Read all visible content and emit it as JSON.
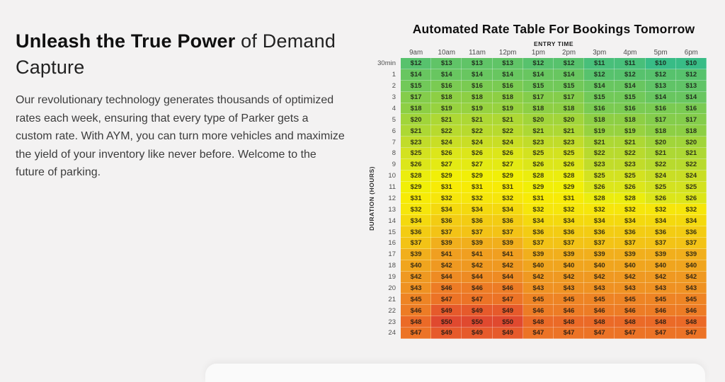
{
  "hero": {
    "title_bold": "Unleash the True Power",
    "title_light_line1": " of Demand",
    "title_line2": "Capture",
    "paragraph": "Our revolutionary technology generates thousands of optimized rates each week, ensuring that every type of Parker gets a custom rate. With AYM, you can turn more vehicles and maximize the yield of your inventory like never before. Welcome to the future of parking."
  },
  "chart_data": {
    "type": "heatmap",
    "title": "Automated Rate Table For Bookings Tomorrow",
    "xlabel": "ENTRY TIME",
    "ylabel": "DURATION (HOURS)",
    "value_prefix": "$",
    "legend_position": "none",
    "columns": [
      "9am",
      "10am",
      "11am",
      "12pm",
      "1pm",
      "2pm",
      "3pm",
      "4pm",
      "5pm",
      "6pm"
    ],
    "rows": [
      "30min",
      "1",
      "2",
      "3",
      "4",
      "5",
      "6",
      "7",
      "8",
      "9",
      "10",
      "11",
      "12",
      "13",
      "14",
      "15",
      "16",
      "17",
      "18",
      "19",
      "20",
      "21",
      "22",
      "23",
      "24"
    ],
    "values": [
      [
        12,
        13,
        13,
        13,
        12,
        12,
        11,
        11,
        10,
        10
      ],
      [
        14,
        14,
        14,
        14,
        14,
        14,
        12,
        12,
        12,
        12
      ],
      [
        15,
        16,
        16,
        16,
        15,
        15,
        14,
        14,
        13,
        13
      ],
      [
        17,
        18,
        18,
        18,
        17,
        17,
        15,
        15,
        14,
        14
      ],
      [
        18,
        19,
        19,
        19,
        18,
        18,
        16,
        16,
        16,
        16
      ],
      [
        20,
        21,
        21,
        21,
        20,
        20,
        18,
        18,
        17,
        17
      ],
      [
        21,
        22,
        22,
        22,
        21,
        21,
        19,
        19,
        18,
        18
      ],
      [
        23,
        24,
        24,
        24,
        23,
        23,
        21,
        21,
        20,
        20
      ],
      [
        25,
        26,
        26,
        26,
        25,
        25,
        22,
        22,
        21,
        21
      ],
      [
        26,
        27,
        27,
        27,
        26,
        26,
        23,
        23,
        22,
        22
      ],
      [
        28,
        29,
        29,
        29,
        28,
        28,
        25,
        25,
        24,
        24
      ],
      [
        29,
        31,
        31,
        31,
        29,
        29,
        26,
        26,
        25,
        25
      ],
      [
        31,
        32,
        32,
        32,
        31,
        31,
        28,
        28,
        26,
        26
      ],
      [
        32,
        34,
        34,
        34,
        32,
        32,
        32,
        32,
        32,
        32
      ],
      [
        34,
        36,
        36,
        36,
        34,
        34,
        34,
        34,
        34,
        34
      ],
      [
        36,
        37,
        37,
        37,
        36,
        36,
        36,
        36,
        36,
        36
      ],
      [
        37,
        39,
        39,
        39,
        37,
        37,
        37,
        37,
        37,
        37
      ],
      [
        39,
        41,
        41,
        41,
        39,
        39,
        39,
        39,
        39,
        39
      ],
      [
        40,
        42,
        42,
        42,
        40,
        40,
        40,
        40,
        40,
        40
      ],
      [
        42,
        44,
        44,
        44,
        42,
        42,
        42,
        42,
        42,
        42
      ],
      [
        43,
        46,
        46,
        46,
        43,
        43,
        43,
        43,
        43,
        43
      ],
      [
        45,
        47,
        47,
        47,
        45,
        45,
        45,
        45,
        45,
        45
      ],
      [
        46,
        49,
        49,
        49,
        46,
        46,
        46,
        46,
        46,
        46
      ],
      [
        48,
        50,
        50,
        50,
        48,
        48,
        48,
        48,
        48,
        48
      ],
      [
        47,
        49,
        49,
        49,
        47,
        47,
        47,
        47,
        47,
        47
      ]
    ],
    "value_range": [
      10,
      50
    ],
    "color_scale": [
      {
        "value": 10,
        "color": "#38bc86"
      },
      {
        "value": 12,
        "color": "#57c26d"
      },
      {
        "value": 14,
        "color": "#68c660"
      },
      {
        "value": 16,
        "color": "#7acb52"
      },
      {
        "value": 18,
        "color": "#8dcf44"
      },
      {
        "value": 20,
        "color": "#a1d53a"
      },
      {
        "value": 22,
        "color": "#b8da2e"
      },
      {
        "value": 24,
        "color": "#c9de25"
      },
      {
        "value": 26,
        "color": "#dce61a"
      },
      {
        "value": 28,
        "color": "#ebed0e"
      },
      {
        "value": 30,
        "color": "#f7f000"
      },
      {
        "value": 32,
        "color": "#f6e60b"
      },
      {
        "value": 34,
        "color": "#f4d90e"
      },
      {
        "value": 36,
        "color": "#f3cc13"
      },
      {
        "value": 38,
        "color": "#f2b919"
      },
      {
        "value": 40,
        "color": "#f0a51e"
      },
      {
        "value": 42,
        "color": "#ef9921"
      },
      {
        "value": 44,
        "color": "#ee8b23"
      },
      {
        "value": 46,
        "color": "#ed7c25"
      },
      {
        "value": 48,
        "color": "#eb6a27"
      },
      {
        "value": 50,
        "color": "#e0492f"
      }
    ]
  }
}
